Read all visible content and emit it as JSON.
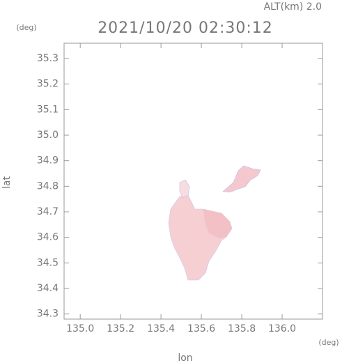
{
  "chart_data": {
    "type": "map",
    "title": "2021/10/20 02:30:12",
    "subtitle": "ALT(km) 2.0",
    "x_label": "lon",
    "y_label": "lat",
    "x_unit": "(deg)",
    "y_unit": "(deg)",
    "xlim": [
      134.92,
      136.2
    ],
    "xticks": [
      {
        "value": 135,
        "label": "135.0"
      },
      135.2,
      135.4,
      135.6,
      135.8,
      {
        "value": 136,
        "label": "136.0"
      }
    ],
    "ylim": [
      34.28,
      35.36
    ],
    "yticks": [
      34.3,
      34.4,
      34.5,
      34.6,
      34.7,
      34.8,
      34.9,
      {
        "value": 35,
        "label": "35.0"
      },
      35.1,
      35.2,
      35.3
    ]
  }
}
